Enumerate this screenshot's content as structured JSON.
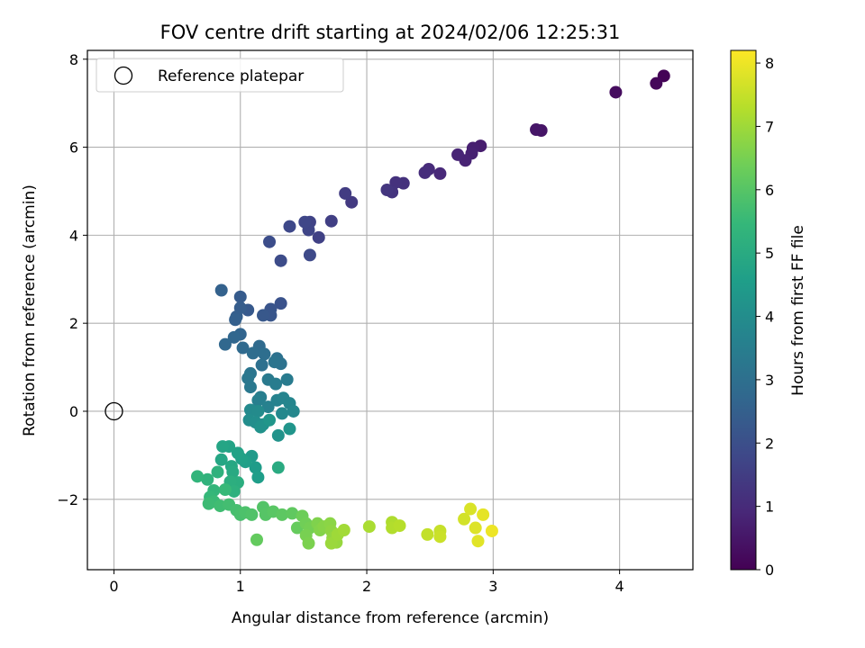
{
  "chart_data": {
    "type": "scatter",
    "title": "FOV centre drift starting at 2024/02/06 12:25:31",
    "xlabel": "Angular distance from reference (arcmin)",
    "ylabel": "Rotation from reference (arcmin)",
    "xlim": [
      -0.21,
      4.58
    ],
    "ylim": [
      -3.6,
      8.2
    ],
    "xticks": [
      0,
      1,
      2,
      3,
      4
    ],
    "yticks": [
      -2,
      0,
      2,
      4,
      6,
      8
    ],
    "grid": true,
    "legend": {
      "placement": "upper-left",
      "entries": [
        "Reference platepar"
      ]
    },
    "reference_point": {
      "x": 0,
      "y": 0,
      "label": "Reference platepar"
    },
    "colorbar": {
      "label": "Hours from first FF file",
      "colormap": "viridis",
      "range": [
        0,
        8.2
      ],
      "ticks": [
        0,
        1,
        2,
        3,
        4,
        5,
        6,
        7,
        8
      ]
    },
    "colormap_stops": [
      "#440154",
      "#482878",
      "#3e4989",
      "#31688e",
      "#26828e",
      "#1f9e89",
      "#35b779",
      "#6ece58",
      "#b5de2b",
      "#fde725"
    ],
    "points": [
      {
        "x": 4.35,
        "y": 7.62,
        "h": 0.05
      },
      {
        "x": 4.29,
        "y": 7.45,
        "h": 0.15
      },
      {
        "x": 3.97,
        "y": 7.25,
        "h": 0.25
      },
      {
        "x": 3.38,
        "y": 6.38,
        "h": 0.45
      },
      {
        "x": 3.34,
        "y": 6.4,
        "h": 0.5
      },
      {
        "x": 2.9,
        "y": 6.03,
        "h": 0.65
      },
      {
        "x": 2.84,
        "y": 5.98,
        "h": 0.7
      },
      {
        "x": 2.83,
        "y": 5.86,
        "h": 0.75
      },
      {
        "x": 2.78,
        "y": 5.7,
        "h": 0.8
      },
      {
        "x": 2.72,
        "y": 5.83,
        "h": 0.85
      },
      {
        "x": 2.58,
        "y": 5.4,
        "h": 0.95
      },
      {
        "x": 2.49,
        "y": 5.5,
        "h": 1.0
      },
      {
        "x": 2.46,
        "y": 5.42,
        "h": 1.05
      },
      {
        "x": 2.29,
        "y": 5.18,
        "h": 1.15
      },
      {
        "x": 2.23,
        "y": 5.2,
        "h": 1.2
      },
      {
        "x": 2.2,
        "y": 4.98,
        "h": 1.25
      },
      {
        "x": 2.16,
        "y": 5.03,
        "h": 1.3
      },
      {
        "x": 1.88,
        "y": 4.75,
        "h": 1.4
      },
      {
        "x": 1.83,
        "y": 4.95,
        "h": 1.45
      },
      {
        "x": 1.72,
        "y": 4.32,
        "h": 1.55
      },
      {
        "x": 1.62,
        "y": 3.95,
        "h": 1.6
      },
      {
        "x": 1.55,
        "y": 4.3,
        "h": 1.65
      },
      {
        "x": 1.54,
        "y": 4.12,
        "h": 1.7
      },
      {
        "x": 1.51,
        "y": 4.3,
        "h": 1.75
      },
      {
        "x": 1.39,
        "y": 4.2,
        "h": 1.8
      },
      {
        "x": 1.55,
        "y": 3.55,
        "h": 1.85
      },
      {
        "x": 1.32,
        "y": 3.42,
        "h": 1.9
      },
      {
        "x": 1.23,
        "y": 3.85,
        "h": 1.95
      },
      {
        "x": 1.32,
        "y": 2.45,
        "h": 2.1
      },
      {
        "x": 1.24,
        "y": 2.32,
        "h": 2.15
      },
      {
        "x": 1.24,
        "y": 2.18,
        "h": 2.2
      },
      {
        "x": 1.18,
        "y": 2.18,
        "h": 2.25
      },
      {
        "x": 1.06,
        "y": 2.3,
        "h": 2.3
      },
      {
        "x": 1.0,
        "y": 2.6,
        "h": 2.35
      },
      {
        "x": 1.0,
        "y": 2.35,
        "h": 2.4
      },
      {
        "x": 0.97,
        "y": 2.15,
        "h": 2.45
      },
      {
        "x": 0.96,
        "y": 2.08,
        "h": 2.5
      },
      {
        "x": 0.85,
        "y": 2.75,
        "h": 2.55
      },
      {
        "x": 1.0,
        "y": 1.75,
        "h": 2.65
      },
      {
        "x": 0.95,
        "y": 1.68,
        "h": 2.7
      },
      {
        "x": 0.88,
        "y": 1.52,
        "h": 2.75
      },
      {
        "x": 1.02,
        "y": 1.44,
        "h": 2.8
      },
      {
        "x": 1.15,
        "y": 1.48,
        "h": 2.85
      },
      {
        "x": 1.1,
        "y": 1.32,
        "h": 2.9
      },
      {
        "x": 1.19,
        "y": 1.3,
        "h": 2.95
      },
      {
        "x": 1.17,
        "y": 1.05,
        "h": 3.0
      },
      {
        "x": 1.29,
        "y": 1.2,
        "h": 3.05
      },
      {
        "x": 1.32,
        "y": 1.08,
        "h": 3.1
      },
      {
        "x": 1.27,
        "y": 1.12,
        "h": 3.15
      },
      {
        "x": 1.08,
        "y": 0.86,
        "h": 3.2
      },
      {
        "x": 1.06,
        "y": 0.75,
        "h": 3.25
      },
      {
        "x": 1.08,
        "y": 0.55,
        "h": 3.3
      },
      {
        "x": 1.22,
        "y": 0.72,
        "h": 3.35
      },
      {
        "x": 1.37,
        "y": 0.72,
        "h": 3.4
      },
      {
        "x": 1.28,
        "y": 0.62,
        "h": 3.45
      },
      {
        "x": 1.16,
        "y": 0.32,
        "h": 3.5
      },
      {
        "x": 1.14,
        "y": 0.25,
        "h": 3.55
      },
      {
        "x": 1.22,
        "y": 0.1,
        "h": 3.6
      },
      {
        "x": 1.29,
        "y": 0.25,
        "h": 3.65
      },
      {
        "x": 1.34,
        "y": 0.3,
        "h": 3.7
      },
      {
        "x": 1.39,
        "y": 0.18,
        "h": 3.75
      },
      {
        "x": 1.42,
        "y": 0.0,
        "h": 3.8
      },
      {
        "x": 1.33,
        "y": -0.05,
        "h": 3.85
      },
      {
        "x": 1.08,
        "y": 0.03,
        "h": 3.9
      },
      {
        "x": 1.14,
        "y": 0.0,
        "h": 3.95
      },
      {
        "x": 1.07,
        "y": -0.2,
        "h": 4.0
      },
      {
        "x": 1.12,
        "y": -0.25,
        "h": 4.05
      },
      {
        "x": 1.18,
        "y": -0.3,
        "h": 4.1
      },
      {
        "x": 1.16,
        "y": -0.36,
        "h": 4.15
      },
      {
        "x": 1.3,
        "y": -0.55,
        "h": 4.2
      },
      {
        "x": 1.39,
        "y": -0.4,
        "h": 4.25
      },
      {
        "x": 1.23,
        "y": -0.2,
        "h": 4.3
      },
      {
        "x": 1.09,
        "y": -1.02,
        "h": 4.45
      },
      {
        "x": 1.12,
        "y": -1.28,
        "h": 4.5
      },
      {
        "x": 1.14,
        "y": -1.5,
        "h": 4.55
      },
      {
        "x": 1.04,
        "y": -1.15,
        "h": 4.6
      },
      {
        "x": 1.01,
        "y": -1.08,
        "h": 4.65
      },
      {
        "x": 0.98,
        "y": -0.95,
        "h": 4.7
      },
      {
        "x": 0.91,
        "y": -0.8,
        "h": 4.75
      },
      {
        "x": 0.86,
        "y": -0.8,
        "h": 4.8
      },
      {
        "x": 0.85,
        "y": -1.1,
        "h": 4.85
      },
      {
        "x": 0.93,
        "y": -1.25,
        "h": 4.9
      },
      {
        "x": 0.94,
        "y": -1.38,
        "h": 4.95
      },
      {
        "x": 1.3,
        "y": -1.28,
        "h": 5.0
      },
      {
        "x": 0.98,
        "y": -1.62,
        "h": 5.1
      },
      {
        "x": 0.92,
        "y": -1.6,
        "h": 5.15
      },
      {
        "x": 0.95,
        "y": -1.82,
        "h": 5.2
      },
      {
        "x": 0.82,
        "y": -1.38,
        "h": 5.25
      },
      {
        "x": 0.74,
        "y": -1.55,
        "h": 5.3
      },
      {
        "x": 0.66,
        "y": -1.48,
        "h": 5.35
      },
      {
        "x": 0.79,
        "y": -1.8,
        "h": 5.4
      },
      {
        "x": 0.76,
        "y": -1.95,
        "h": 5.45
      },
      {
        "x": 0.88,
        "y": -1.78,
        "h": 5.5
      },
      {
        "x": 0.79,
        "y": -2.05,
        "h": 5.55
      },
      {
        "x": 0.75,
        "y": -2.1,
        "h": 5.6
      },
      {
        "x": 0.84,
        "y": -2.15,
        "h": 5.65
      },
      {
        "x": 0.91,
        "y": -2.12,
        "h": 5.7
      },
      {
        "x": 0.97,
        "y": -2.25,
        "h": 5.75
      },
      {
        "x": 1.0,
        "y": -2.35,
        "h": 5.8
      },
      {
        "x": 1.04,
        "y": -2.3,
        "h": 5.85
      },
      {
        "x": 1.09,
        "y": -2.35,
        "h": 5.9
      },
      {
        "x": 1.18,
        "y": -2.18,
        "h": 5.95
      },
      {
        "x": 1.2,
        "y": -2.35,
        "h": 6.0
      },
      {
        "x": 1.26,
        "y": -2.28,
        "h": 6.05
      },
      {
        "x": 1.33,
        "y": -2.35,
        "h": 6.1
      },
      {
        "x": 1.41,
        "y": -2.32,
        "h": 6.15
      },
      {
        "x": 1.13,
        "y": -2.92,
        "h": 6.2
      },
      {
        "x": 1.45,
        "y": -2.65,
        "h": 6.25
      },
      {
        "x": 1.49,
        "y": -2.38,
        "h": 6.35
      },
      {
        "x": 1.52,
        "y": -2.55,
        "h": 6.4
      },
      {
        "x": 1.55,
        "y": -2.65,
        "h": 6.45
      },
      {
        "x": 1.52,
        "y": -2.82,
        "h": 6.5
      },
      {
        "x": 1.54,
        "y": -3.0,
        "h": 6.55
      },
      {
        "x": 1.61,
        "y": -2.55,
        "h": 6.6
      },
      {
        "x": 1.63,
        "y": -2.7,
        "h": 6.65
      },
      {
        "x": 1.66,
        "y": -2.62,
        "h": 6.7
      },
      {
        "x": 1.71,
        "y": -2.55,
        "h": 6.75
      },
      {
        "x": 1.72,
        "y": -2.72,
        "h": 6.8
      },
      {
        "x": 1.73,
        "y": -2.88,
        "h": 6.85
      },
      {
        "x": 1.76,
        "y": -2.98,
        "h": 6.9
      },
      {
        "x": 1.72,
        "y": -3.0,
        "h": 6.95
      },
      {
        "x": 1.77,
        "y": -2.8,
        "h": 7.0
      },
      {
        "x": 1.82,
        "y": -2.7,
        "h": 7.05
      },
      {
        "x": 2.02,
        "y": -2.62,
        "h": 7.15
      },
      {
        "x": 2.2,
        "y": -2.52,
        "h": 7.2
      },
      {
        "x": 2.2,
        "y": -2.65,
        "h": 7.25
      },
      {
        "x": 2.26,
        "y": -2.6,
        "h": 7.3
      },
      {
        "x": 2.48,
        "y": -2.8,
        "h": 7.45
      },
      {
        "x": 2.58,
        "y": -2.72,
        "h": 7.5
      },
      {
        "x": 2.58,
        "y": -2.85,
        "h": 7.55
      },
      {
        "x": 2.77,
        "y": -2.45,
        "h": 7.65
      },
      {
        "x": 2.82,
        "y": -2.22,
        "h": 7.75
      },
      {
        "x": 2.86,
        "y": -2.65,
        "h": 7.8
      },
      {
        "x": 2.88,
        "y": -2.95,
        "h": 7.85
      },
      {
        "x": 2.92,
        "y": -2.35,
        "h": 7.9
      },
      {
        "x": 2.99,
        "y": -2.72,
        "h": 8.0
      }
    ]
  }
}
